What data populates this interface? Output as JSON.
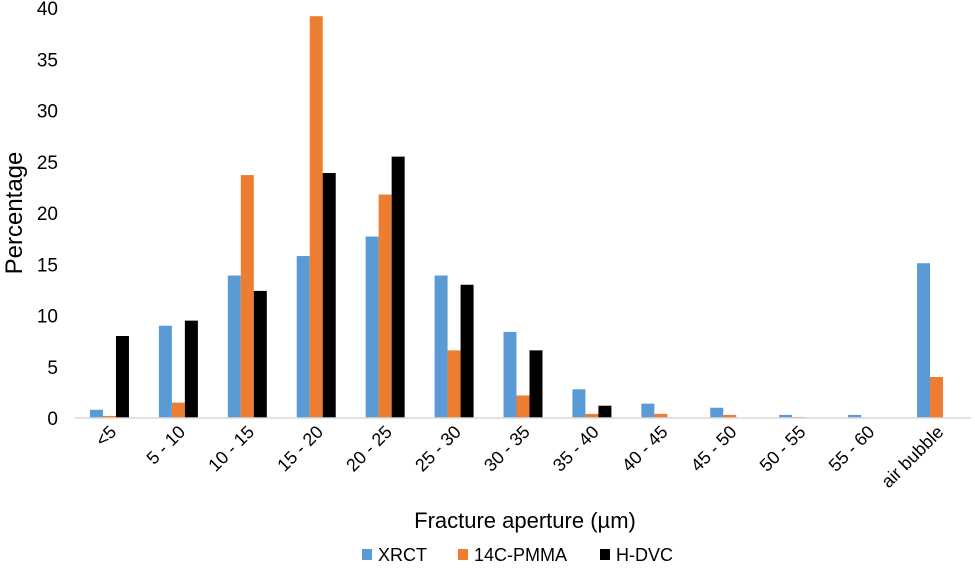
{
  "chart_data": {
    "type": "bar",
    "categories": [
      "<5",
      "5 - 10",
      "10 - 15",
      "15 - 20",
      "20 - 25",
      "25 - 30",
      "30 - 35",
      "35 - 40",
      "40 - 45",
      "45 - 50",
      "50 - 55",
      "55 - 60",
      "air bubble"
    ],
    "series": [
      {
        "name": "XRCT",
        "color": "#5b9bd5",
        "values": [
          0.8,
          9.0,
          13.9,
          15.8,
          17.7,
          13.9,
          8.4,
          2.8,
          1.4,
          1.0,
          0.3,
          0.3,
          15.1
        ]
      },
      {
        "name": "14C-PMMA",
        "color": "#ed7d31",
        "values": [
          0.2,
          1.5,
          23.7,
          39.2,
          21.8,
          6.6,
          2.2,
          0.4,
          0.4,
          0.3,
          0.1,
          0.0,
          4.0
        ]
      },
      {
        "name": "H-DVC",
        "color": "#000000",
        "values": [
          8.0,
          9.5,
          12.4,
          23.9,
          25.5,
          13.0,
          6.6,
          1.2,
          0.0,
          0.0,
          0.0,
          0.0,
          0.0
        ]
      }
    ],
    "xlabel": "Fracture aperture (µm)",
    "ylabel": "Percentage",
    "ylim": [
      0,
      40
    ],
    "yticks": [
      "0",
      "5",
      "10",
      "15",
      "20",
      "25",
      "30",
      "35",
      "40"
    ],
    "grid": false,
    "legend_position": "bottom"
  }
}
